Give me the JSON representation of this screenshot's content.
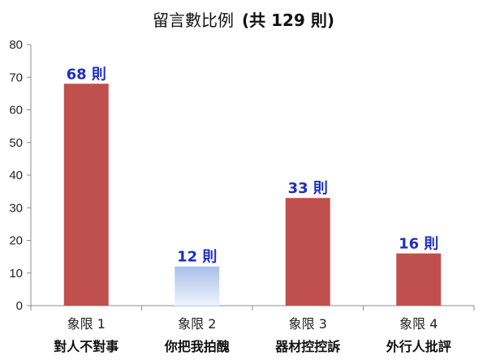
{
  "chart_data": {
    "type": "bar",
    "title": "留言數比例",
    "title_suffix": "(共 129 則)",
    "categories": [
      {
        "line1": "象限 1",
        "line2": "對人不對事"
      },
      {
        "line1": "象限 2",
        "line2": "你把我拍醜"
      },
      {
        "line1": "象限 3",
        "line2": "器材控控訴"
      },
      {
        "line1": "象限 4",
        "line2": "外行人批評"
      }
    ],
    "values": [
      68,
      12,
      33,
      16
    ],
    "data_labels": [
      "68 則",
      "12 則",
      "33 則",
      "16 則"
    ],
    "ylim": [
      0,
      80
    ],
    "yticks": [
      0,
      10,
      20,
      30,
      40,
      50,
      60,
      70,
      80
    ],
    "grid": false,
    "colors": {
      "bar": "#c0504d",
      "highlight_bar_top": "#a9c0ea",
      "highlight_bar_bottom": "#eef3fb",
      "data_label": "#1f2fbf",
      "axis": "#8c8c8c"
    },
    "highlight_index": 1
  }
}
